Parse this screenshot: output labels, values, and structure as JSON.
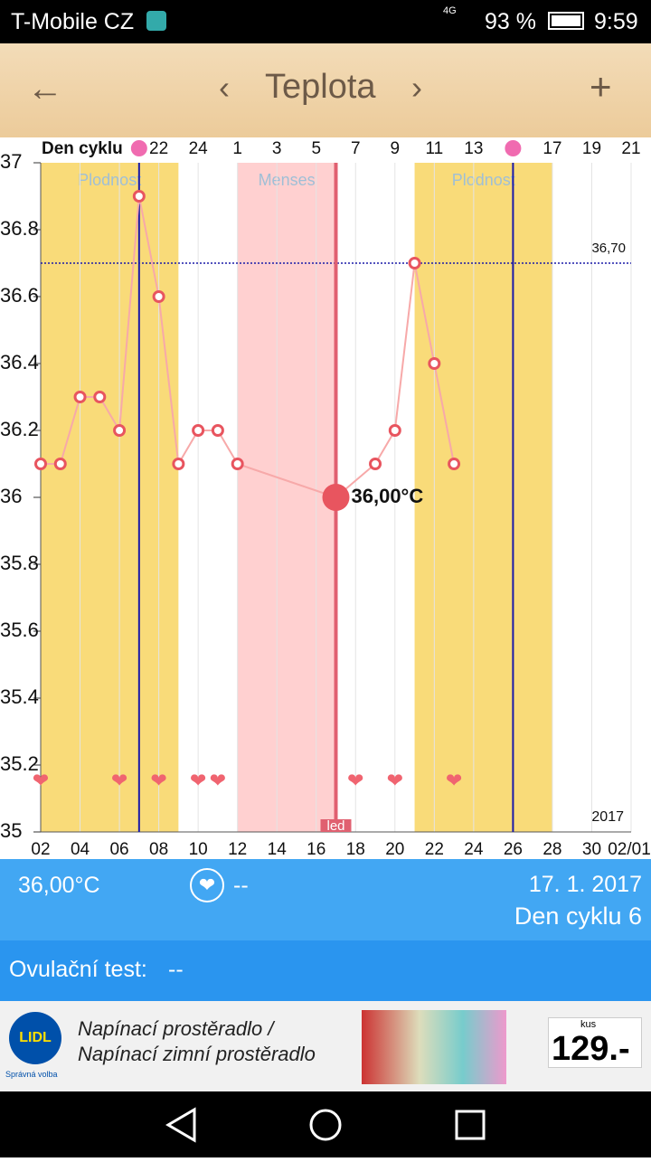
{
  "status_bar": {
    "carrier": "T-Mobile CZ",
    "network": "4G",
    "battery": "93 %",
    "time": "9:59"
  },
  "header": {
    "title": "Teplota"
  },
  "chart_data": {
    "type": "line",
    "x_label": "Den cyklu",
    "x": [
      2,
      3,
      4,
      5,
      6,
      7,
      8,
      9,
      10,
      11,
      12,
      17,
      19,
      20,
      21,
      22,
      23
    ],
    "values": [
      36.1,
      36.1,
      36.3,
      36.3,
      36.2,
      36.9,
      36.6,
      36.1,
      36.2,
      36.2,
      36.1,
      36.0,
      36.1,
      36.2,
      36.7,
      36.4,
      36.1
    ],
    "selected_index": 11,
    "selected_value_label": "36,00°C",
    "selected_x": 17,
    "selected_marker_label": "led",
    "xlim": [
      2,
      32
    ],
    "xticks": [
      {
        "value": 2,
        "label": "02"
      },
      {
        "value": 4,
        "label": "04"
      },
      {
        "value": 6,
        "label": "06"
      },
      {
        "value": 8,
        "label": "08"
      },
      10,
      12,
      14,
      16,
      18,
      20,
      22,
      24,
      26,
      28,
      30,
      {
        "value": 32,
        "label": "02/01"
      }
    ],
    "ylim": [
      35,
      37
    ],
    "yticks": [
      35,
      35.2,
      35.4,
      35.6,
      35.8,
      36,
      36.2,
      36.4,
      36.6,
      36.8,
      37
    ],
    "cycle_day_ticks": [
      {
        "value": 8,
        "label": "22"
      },
      {
        "value": 10,
        "label": "24"
      },
      {
        "value": 12,
        "label": "1"
      },
      {
        "value": 14,
        "label": "3"
      },
      {
        "value": 16,
        "label": "5"
      },
      {
        "value": 18,
        "label": "7"
      },
      {
        "value": 20,
        "label": "9"
      },
      {
        "value": 22,
        "label": "11"
      },
      {
        "value": 24,
        "label": "13"
      },
      {
        "value": 28,
        "label": "17"
      },
      {
        "value": 30,
        "label": "19"
      },
      {
        "value": 32,
        "label": "21"
      }
    ],
    "bands": [
      {
        "label": "Plodnost",
        "x": [
          2,
          9
        ],
        "color": "#f9db79"
      },
      {
        "label": "Menses",
        "x": [
          12,
          17
        ],
        "color": "#ffd0d0"
      },
      {
        "label": "Plodnost",
        "x": [
          21,
          28
        ],
        "color": "#f9db79"
      }
    ],
    "ovulation_x": [
      7,
      26
    ],
    "reference_line": {
      "value": 36.7,
      "label": "36,70"
    },
    "heart_x": [
      2,
      6,
      8,
      10,
      11,
      18,
      20,
      23
    ],
    "year_label": "2017",
    "color": "#f7a9a9",
    "marker_color": "#e8555f",
    "grid": true
  },
  "info_panel": {
    "temperature": "36,00°C",
    "heart_status": "--",
    "date": "17. 1. 2017",
    "cycle_day": "Den cyklu 6"
  },
  "ovulation_test": {
    "label": "Ovulační test:",
    "value": "--"
  },
  "ad": {
    "brand": "LIDL",
    "slogan": "Správná volba",
    "line1": "Napínací prostěradlo /",
    "line2": "Napínací zimní prostěradlo",
    "unit": "kus",
    "price": "129.-"
  }
}
